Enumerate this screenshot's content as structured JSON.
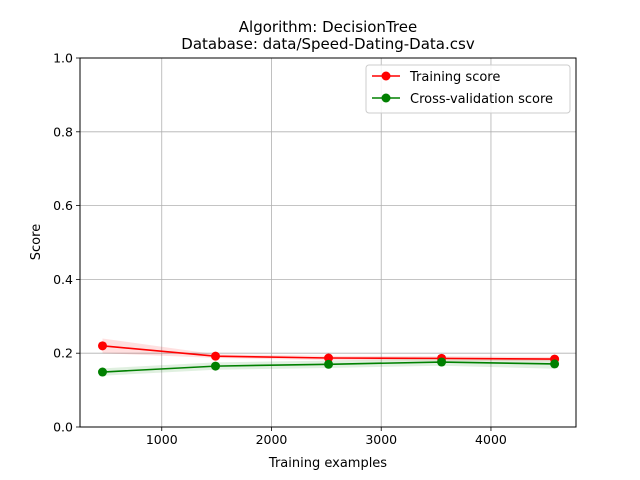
{
  "chart_data": {
    "type": "line",
    "title": "Algorithm: DecisionTree",
    "subtitle": "Database: data/Speed-Dating-Data.csv",
    "xlabel": "Training examples",
    "ylabel": "Score",
    "xlim": [
      255,
      4775
    ],
    "ylim": [
      0.0,
      1.0
    ],
    "xticks": [
      1000,
      2000,
      3000,
      4000
    ],
    "yticks": [
      0.0,
      0.2,
      0.4,
      0.6,
      0.8,
      1.0
    ],
    "grid": true,
    "legend_position": "top-right",
    "series": [
      {
        "name": "Training score",
        "color": "#ff0000",
        "band_color": "#ff0000",
        "x": [
          460,
          1490,
          2520,
          3550,
          4580
        ],
        "y": [
          0.22,
          0.192,
          0.187,
          0.186,
          0.184
        ],
        "lower": [
          0.2,
          0.187,
          0.181,
          0.18,
          0.178
        ],
        "upper": [
          0.24,
          0.197,
          0.193,
          0.192,
          0.19
        ]
      },
      {
        "name": "Cross-validation score",
        "color": "#008000",
        "band_color": "#008000",
        "x": [
          460,
          1490,
          2520,
          3550,
          4580
        ],
        "y": [
          0.149,
          0.165,
          0.17,
          0.176,
          0.171
        ],
        "lower": [
          0.139,
          0.155,
          0.16,
          0.166,
          0.158
        ],
        "upper": [
          0.159,
          0.175,
          0.18,
          0.186,
          0.184
        ]
      }
    ]
  }
}
